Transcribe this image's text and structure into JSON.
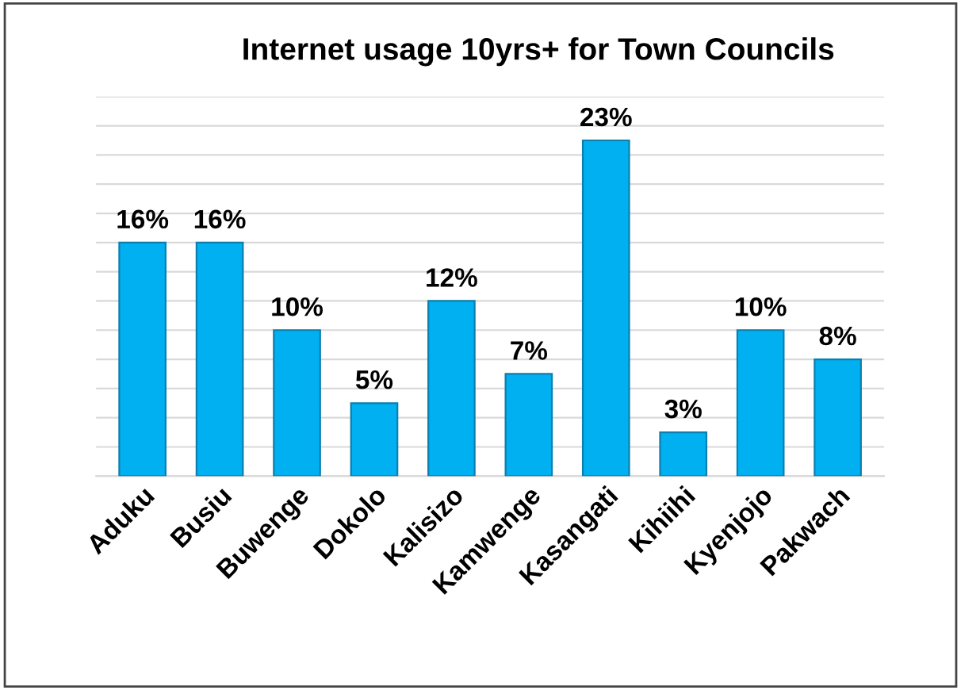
{
  "chart_data": {
    "type": "bar",
    "title": "Internet usage 10yrs+ for Town Councils",
    "categories": [
      "Aduku",
      "Busiu",
      "Buwenge",
      "Dokolo",
      "Kalisizo",
      "Kamwenge",
      "Kasangati",
      "Kihiihi",
      "Kyenjojo",
      "Pakwach"
    ],
    "values": [
      16,
      16,
      10,
      5,
      12,
      7,
      23,
      3,
      10,
      8
    ],
    "value_labels": [
      "16%",
      "16%",
      "10%",
      "5%",
      "12%",
      "7%",
      "23%",
      "3%",
      "10%",
      "8%"
    ],
    "color": "#00b0f0",
    "ylim": [
      0,
      26
    ],
    "yticks": [
      {
        "value": 0,
        "label": null
      },
      {
        "value": 2,
        "label": null
      },
      {
        "value": 4,
        "label": null
      },
      {
        "value": 6,
        "label": null
      },
      {
        "value": 8,
        "label": null
      },
      {
        "value": 10,
        "label": null
      },
      {
        "value": 12,
        "label": null
      },
      {
        "value": 14,
        "label": null
      },
      {
        "value": 16,
        "label": null
      },
      {
        "value": 18,
        "label": null
      },
      {
        "value": 20,
        "label": null
      },
      {
        "value": 22,
        "label": null
      },
      {
        "value": 24,
        "label": null
      },
      {
        "value": 26,
        "label": null
      }
    ],
    "grid": "y",
    "tick_labels": "x"
  }
}
